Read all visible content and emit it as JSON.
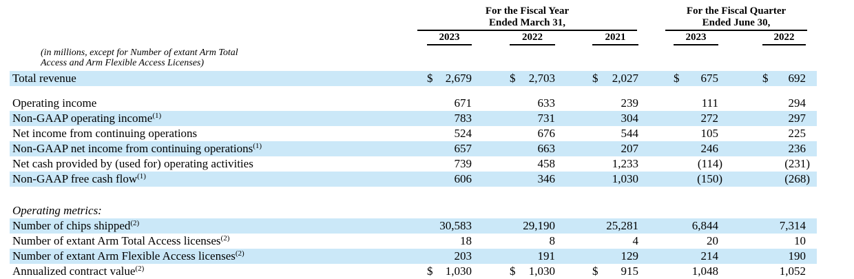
{
  "table": {
    "note_line1": "(in millions, except for Number of extant Arm Total",
    "note_line2": "Access and Arm Flexible Access Licenses)",
    "highlight_color": "#cbe8f8",
    "col_groups": [
      {
        "title_line1": "For the Fiscal Year",
        "title_line2": "Ended March 31,",
        "years": [
          "2023",
          "2022",
          "2021"
        ]
      },
      {
        "title_line1": "For the Fiscal Quarter",
        "title_line2": "Ended June 30,",
        "years": [
          "2023",
          "2022"
        ]
      }
    ],
    "rows": [
      {
        "label": "Total revenue",
        "highlight": true,
        "cells": [
          {
            "d": "$",
            "v": "2,679"
          },
          {
            "d": "$",
            "v": "2,703"
          },
          {
            "d": "$",
            "v": "2,027"
          },
          {
            "d": "$",
            "v": "675"
          },
          {
            "d": "$",
            "v": "692"
          }
        ]
      },
      {
        "type": "spacer",
        "height": 14
      },
      {
        "label": "Operating income",
        "cells": [
          {
            "v": "671"
          },
          {
            "v": "633"
          },
          {
            "v": "239"
          },
          {
            "v": "111"
          },
          {
            "v": "294"
          }
        ]
      },
      {
        "label": "Non-GAAP operating income",
        "sup": "(1)",
        "highlight": true,
        "cells": [
          {
            "v": "783"
          },
          {
            "v": "731"
          },
          {
            "v": "304"
          },
          {
            "v": "272"
          },
          {
            "v": "297"
          }
        ]
      },
      {
        "label": "Net income from continuing operations",
        "cells": [
          {
            "v": "524"
          },
          {
            "v": "676"
          },
          {
            "v": "544"
          },
          {
            "v": "105"
          },
          {
            "v": "225"
          }
        ]
      },
      {
        "label": "Non-GAAP net income from continuing operations",
        "sup": "(1)",
        "highlight": true,
        "cells": [
          {
            "v": "657"
          },
          {
            "v": "663"
          },
          {
            "v": "207"
          },
          {
            "v": "246"
          },
          {
            "v": "236"
          }
        ]
      },
      {
        "label": "Net cash provided by (used for) operating activities",
        "cells": [
          {
            "v": "739"
          },
          {
            "v": "458"
          },
          {
            "v": "1,233"
          },
          {
            "v": "(114)"
          },
          {
            "v": "(231)"
          }
        ]
      },
      {
        "label": "Non-GAAP free cash flow",
        "sup": "(1)",
        "highlight": true,
        "cells": [
          {
            "v": "606"
          },
          {
            "v": "346"
          },
          {
            "v": "1,030"
          },
          {
            "v": "(150)"
          },
          {
            "v": "(268)"
          }
        ]
      },
      {
        "type": "spacer",
        "height": 24
      },
      {
        "label": "Operating metrics:",
        "italic": true,
        "section": true,
        "cells": []
      },
      {
        "label": "Number of chips shipped",
        "sup": "(2)",
        "highlight": true,
        "cells": [
          {
            "v": "30,583"
          },
          {
            "v": "29,190"
          },
          {
            "v": "25,281"
          },
          {
            "v": "6,844"
          },
          {
            "v": "7,314"
          }
        ]
      },
      {
        "label": "Number of extant Arm Total Access licenses",
        "sup": "(2)",
        "cells": [
          {
            "v": "18"
          },
          {
            "v": "8"
          },
          {
            "v": "4"
          },
          {
            "v": "20"
          },
          {
            "v": "10"
          }
        ]
      },
      {
        "label": "Number of extant Arm Flexible Access licenses",
        "sup": "(2)",
        "highlight": true,
        "cells": [
          {
            "v": "203"
          },
          {
            "v": "191"
          },
          {
            "v": "129"
          },
          {
            "v": "214"
          },
          {
            "v": "190"
          }
        ]
      },
      {
        "label": "Annualized contract value",
        "sup": "(2)",
        "cells": [
          {
            "d": "$",
            "v": "1,030"
          },
          {
            "d": "$",
            "v": "1,030"
          },
          {
            "d": "$",
            "v": "915"
          },
          {
            "v": "1,048"
          },
          {
            "v": "1,052"
          }
        ]
      }
    ]
  }
}
